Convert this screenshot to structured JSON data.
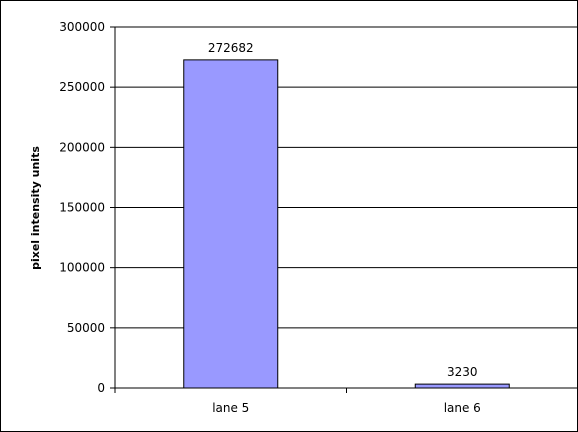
{
  "chart_data": {
    "type": "bar",
    "title": "",
    "xlabel": "",
    "ylabel": "pixel intensity units",
    "categories": [
      "lane 5",
      "lane 6"
    ],
    "values": [
      272682,
      3230
    ],
    "data_labels": [
      "272682",
      "3230"
    ],
    "ylim": [
      0,
      300000
    ],
    "yticks": [
      0,
      50000,
      100000,
      150000,
      200000,
      250000,
      300000
    ],
    "ytick_labels": [
      "0",
      "50000",
      "100000",
      "150000",
      "200000",
      "250000",
      "300000"
    ],
    "grid": true,
    "legend": "none",
    "colors": {
      "bar_fill": "#9999ff",
      "bar_stroke": "#000000",
      "gridline": "#000000",
      "axis": "#000000"
    }
  }
}
